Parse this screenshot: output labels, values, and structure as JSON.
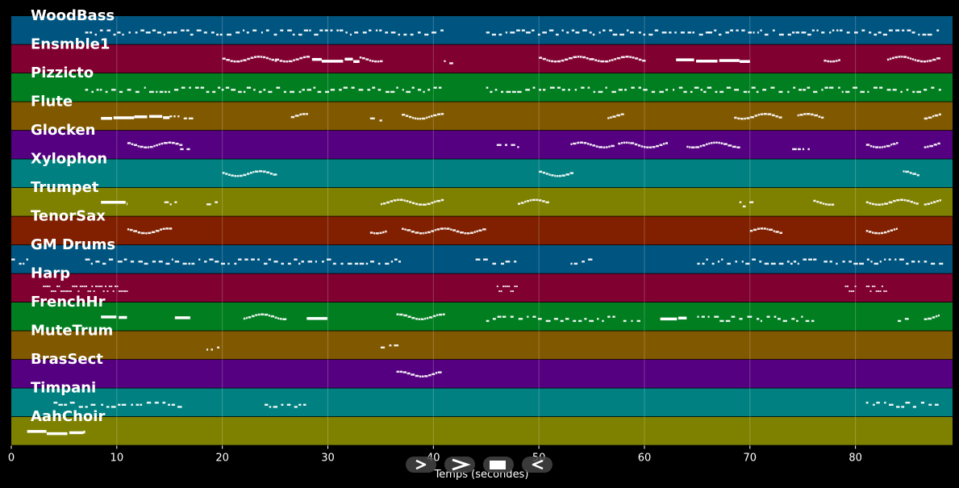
{
  "app": {
    "x_axis_label": "Temps (secondes)",
    "x_ticks": [
      "0",
      "10",
      "20",
      "30",
      "40",
      "50",
      "60",
      "70",
      "80"
    ]
  },
  "tracks": [
    {
      "name": "WoodBass",
      "color": "#005580"
    },
    {
      "name": "Ensmble1",
      "color": "#800030"
    },
    {
      "name": "Pizzicto",
      "color": "#007e20"
    },
    {
      "name": "Flute",
      "color": "#805800"
    },
    {
      "name": "Glocken",
      "color": "#550080"
    },
    {
      "name": "Xylophon",
      "color": "#008080"
    },
    {
      "name": "Trumpet",
      "color": "#7e8000"
    },
    {
      "name": "TenorSax",
      "color": "#802000"
    },
    {
      "name": "GM Drums",
      "color": "#005580"
    },
    {
      "name": "Harp",
      "color": "#800030"
    },
    {
      "name": "FrenchHr",
      "color": "#007e20"
    },
    {
      "name": "MuteTrum",
      "color": "#805800"
    },
    {
      "name": "BrasSect",
      "color": "#550080"
    },
    {
      "name": "Timpani",
      "color": "#008080"
    },
    {
      "name": "AahChoir",
      "color": "#7e8000"
    }
  ],
  "transport": [
    {
      "id": "play",
      "icon": "play-icon"
    },
    {
      "id": "fast",
      "icon": "fast-forward-icon"
    },
    {
      "id": "stop",
      "icon": "stop-icon"
    },
    {
      "id": "rewind",
      "icon": "rewind-icon"
    }
  ]
}
